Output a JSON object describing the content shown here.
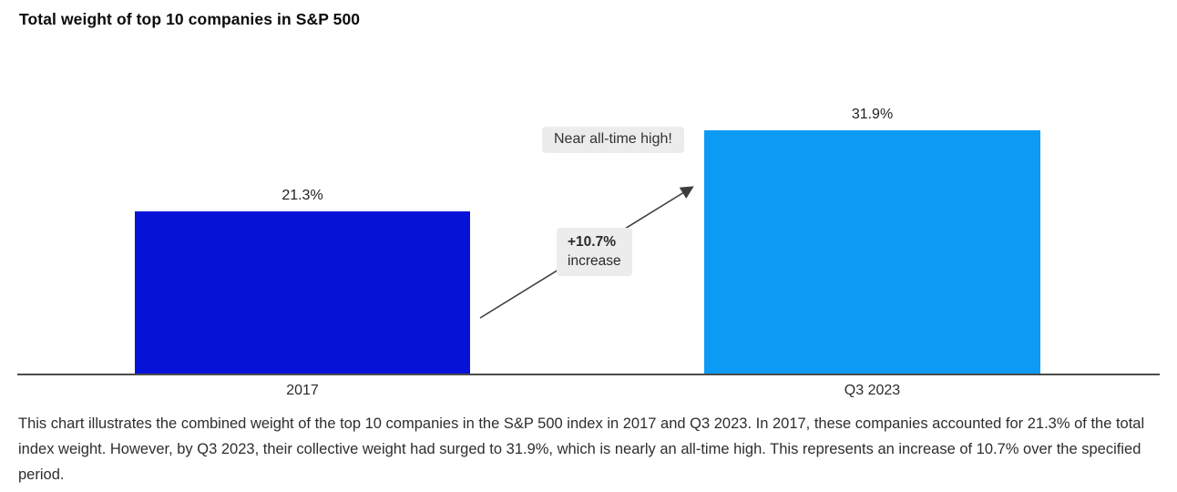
{
  "chart_data": {
    "type": "bar",
    "title": "Total weight of top 10 companies in S&P 500",
    "categories": [
      "2017",
      "Q3 2023"
    ],
    "values": [
      21.3,
      31.9
    ],
    "value_labels": [
      "21.3%",
      "31.9%"
    ],
    "bar_colors": [
      "#0712d9",
      "#0d9af4"
    ],
    "xlabel": "",
    "ylabel": "",
    "ylim": [
      0,
      35
    ],
    "grid": false,
    "legend": false,
    "annotations": {
      "callout": "Near all-time high!",
      "delta_value": "+10.7%",
      "delta_label": "increase"
    }
  },
  "caption": "This chart illustrates the combined weight of the top 10 companies in the S&P 500 index in 2017 and Q3 2023. In 2017, these companies accounted for 21.3% of the total index weight. However, by Q3 2023, their collective weight had surged to 31.9%, which is nearly an all-time high. This represents an increase of 10.7% over the specified period."
}
